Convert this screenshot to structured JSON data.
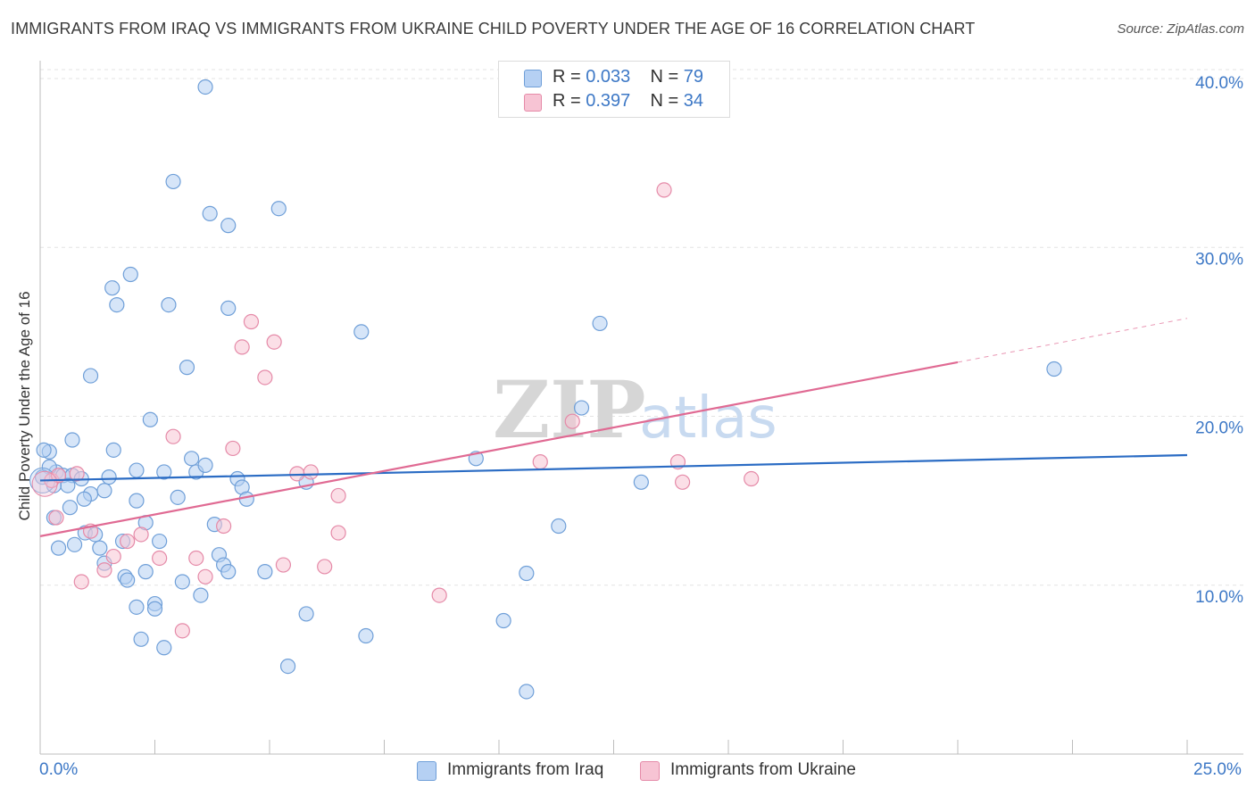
{
  "title": "IMMIGRANTS FROM IRAQ VS IMMIGRANTS FROM UKRAINE CHILD POVERTY UNDER THE AGE OF 16 CORRELATION CHART",
  "source": "Source: ZipAtlas.com",
  "watermark": {
    "zip": "ZIP",
    "atlas": "atlas"
  },
  "legend": {
    "rows": [
      {
        "r_label": "R =",
        "r_value": "0.033",
        "n_label": "N =",
        "n_value": "79"
      },
      {
        "r_label": "R =",
        "r_value": "0.397",
        "n_label": "N =",
        "n_value": "34"
      }
    ]
  },
  "colors": {
    "iraq_fill": "#b5d0f3",
    "iraq_stroke": "#6f9fd8",
    "iraq_line": "#2b6cc4",
    "ukraine_fill": "#f7c4d4",
    "ukraine_stroke": "#e58aa8",
    "ukraine_line": "#e06a93",
    "axis_text": "#3d78c6",
    "grid": "#e3e3e3"
  },
  "chart_data": {
    "type": "scatter",
    "xlabel": "",
    "ylabel": "Child Poverty Under the Age of 16",
    "xlim": [
      0,
      25
    ],
    "ylim": [
      0,
      40
    ],
    "x_tick_labels": [
      "0.0%",
      "25.0%"
    ],
    "y_ticks": [
      10,
      20,
      30,
      40
    ],
    "y_tick_labels": [
      "10.0%",
      "20.0%",
      "30.0%",
      "40.0%"
    ],
    "grid": true,
    "legend_position": "bottom",
    "series": [
      {
        "name": "Immigrants from Iraq",
        "R": 0.033,
        "N": 79,
        "trend": {
          "x": [
            0,
            25
          ],
          "y": [
            16.2,
            17.7
          ]
        },
        "points": [
          [
            3.6,
            39.5
          ],
          [
            2.9,
            33.9
          ],
          [
            3.7,
            32.0
          ],
          [
            4.1,
            31.3
          ],
          [
            5.2,
            32.3
          ],
          [
            1.97,
            28.4
          ],
          [
            1.57,
            27.6
          ],
          [
            1.67,
            26.6
          ],
          [
            2.8,
            26.6
          ],
          [
            4.1,
            26.4
          ],
          [
            7.0,
            25.0
          ],
          [
            12.2,
            25.5
          ],
          [
            1.1,
            22.4
          ],
          [
            3.2,
            22.9
          ],
          [
            22.1,
            22.8
          ],
          [
            11.8,
            20.5
          ],
          [
            2.4,
            19.8
          ],
          [
            0.7,
            18.6
          ],
          [
            0.2,
            17.9
          ],
          [
            1.6,
            18.0
          ],
          [
            3.3,
            17.5
          ],
          [
            9.5,
            17.5
          ],
          [
            0.35,
            16.7
          ],
          [
            0.2,
            17.0
          ],
          [
            0.5,
            16.5
          ],
          [
            2.1,
            16.8
          ],
          [
            2.7,
            16.7
          ],
          [
            3.4,
            16.7
          ],
          [
            3.6,
            17.1
          ],
          [
            0.7,
            16.5
          ],
          [
            1.5,
            16.4
          ],
          [
            0.9,
            16.3
          ],
          [
            4.3,
            16.3
          ],
          [
            4.4,
            15.8
          ],
          [
            5.8,
            16.1
          ],
          [
            13.1,
            16.1
          ],
          [
            0.6,
            15.9
          ],
          [
            1.1,
            15.4
          ],
          [
            1.4,
            15.6
          ],
          [
            0.3,
            15.9
          ],
          [
            0.96,
            15.1
          ],
          [
            2.1,
            15.0
          ],
          [
            3.0,
            15.2
          ],
          [
            4.5,
            15.1
          ],
          [
            0.65,
            14.6
          ],
          [
            0.3,
            14.0
          ],
          [
            2.3,
            13.7
          ],
          [
            3.8,
            13.6
          ],
          [
            11.3,
            13.5
          ],
          [
            0.98,
            13.1
          ],
          [
            1.2,
            13.0
          ],
          [
            1.8,
            12.6
          ],
          [
            2.6,
            12.6
          ],
          [
            0.4,
            12.2
          ],
          [
            0.75,
            12.4
          ],
          [
            1.3,
            12.2
          ],
          [
            3.9,
            11.8
          ],
          [
            1.4,
            11.3
          ],
          [
            4.0,
            11.2
          ],
          [
            2.3,
            10.8
          ],
          [
            4.1,
            10.8
          ],
          [
            4.9,
            10.8
          ],
          [
            10.6,
            10.7
          ],
          [
            1.85,
            10.5
          ],
          [
            1.9,
            10.3
          ],
          [
            3.1,
            10.2
          ],
          [
            3.5,
            9.4
          ],
          [
            2.5,
            8.9
          ],
          [
            2.1,
            8.7
          ],
          [
            2.5,
            8.6
          ],
          [
            5.8,
            8.3
          ],
          [
            10.1,
            7.9
          ],
          [
            2.2,
            6.8
          ],
          [
            7.1,
            7.0
          ],
          [
            2.7,
            6.3
          ],
          [
            5.4,
            5.2
          ],
          [
            10.6,
            3.7
          ],
          [
            0.05,
            16.4
          ],
          [
            0.08,
            18.0
          ]
        ]
      },
      {
        "name": "Immigrants from Ukraine",
        "R": 0.397,
        "N": 34,
        "trend": {
          "x": [
            0,
            20
          ],
          "y": [
            12.9,
            23.2
          ]
        },
        "trend_dashed": {
          "x": [
            20,
            25
          ],
          "y": [
            23.2,
            25.8
          ]
        },
        "points": [
          [
            13.6,
            33.4
          ],
          [
            4.6,
            25.6
          ],
          [
            4.4,
            24.1
          ],
          [
            5.1,
            24.4
          ],
          [
            4.9,
            22.3
          ],
          [
            11.6,
            19.7
          ],
          [
            2.9,
            18.8
          ],
          [
            4.2,
            18.1
          ],
          [
            10.9,
            17.3
          ],
          [
            13.9,
            17.3
          ],
          [
            5.6,
            16.6
          ],
          [
            5.9,
            16.7
          ],
          [
            15.5,
            16.3
          ],
          [
            14.0,
            16.1
          ],
          [
            0.25,
            16.2
          ],
          [
            0.4,
            16.5
          ],
          [
            0.8,
            16.6
          ],
          [
            6.5,
            15.3
          ],
          [
            0.35,
            14.0
          ],
          [
            4.0,
            13.5
          ],
          [
            6.5,
            13.1
          ],
          [
            1.1,
            13.2
          ],
          [
            2.2,
            13.0
          ],
          [
            1.9,
            12.6
          ],
          [
            1.6,
            11.7
          ],
          [
            2.6,
            11.6
          ],
          [
            3.4,
            11.6
          ],
          [
            5.3,
            11.2
          ],
          [
            6.2,
            11.1
          ],
          [
            1.4,
            10.9
          ],
          [
            3.6,
            10.5
          ],
          [
            0.9,
            10.2
          ],
          [
            8.7,
            9.4
          ],
          [
            3.1,
            7.3
          ]
        ]
      }
    ]
  },
  "bottom_legend": {
    "iraq_label": "Immigrants from Iraq",
    "ukraine_label": "Immigrants from Ukraine"
  }
}
